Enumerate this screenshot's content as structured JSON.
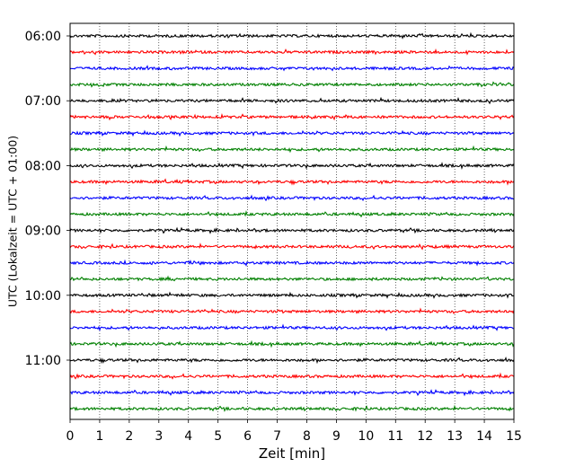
{
  "chart_data": {
    "type": "line",
    "title": "",
    "xlabel": "Zeit  [min]",
    "ylabel": "UTC (Lokalzeit = UTC + 01:00)",
    "xlim": [
      0,
      15
    ],
    "x_ticks": [
      0,
      1,
      2,
      3,
      4,
      5,
      6,
      7,
      8,
      9,
      10,
      11,
      12,
      13,
      14,
      15
    ],
    "y_ticks": [
      "06:00",
      "07:00",
      "08:00",
      "09:00",
      "10:00",
      "11:00"
    ],
    "grid": "vertical dotted lines at each minute",
    "trace_interval_min": 15,
    "colors": [
      "#000000",
      "#ff0000",
      "#0000ff",
      "#008000"
    ],
    "traces": [
      {
        "start": "06:00",
        "color": "#000000"
      },
      {
        "start": "06:15",
        "color": "#ff0000"
      },
      {
        "start": "06:30",
        "color": "#0000ff"
      },
      {
        "start": "06:45",
        "color": "#008000"
      },
      {
        "start": "07:00",
        "color": "#000000"
      },
      {
        "start": "07:15",
        "color": "#ff0000"
      },
      {
        "start": "07:30",
        "color": "#0000ff"
      },
      {
        "start": "07:45",
        "color": "#008000"
      },
      {
        "start": "08:00",
        "color": "#000000"
      },
      {
        "start": "08:15",
        "color": "#ff0000"
      },
      {
        "start": "08:30",
        "color": "#0000ff"
      },
      {
        "start": "08:45",
        "color": "#008000"
      },
      {
        "start": "09:00",
        "color": "#000000"
      },
      {
        "start": "09:15",
        "color": "#ff0000"
      },
      {
        "start": "09:30",
        "color": "#0000ff"
      },
      {
        "start": "09:45",
        "color": "#008000"
      },
      {
        "start": "10:00",
        "color": "#000000"
      },
      {
        "start": "10:15",
        "color": "#ff0000"
      },
      {
        "start": "10:30",
        "color": "#0000ff"
      },
      {
        "start": "10:45",
        "color": "#008000"
      },
      {
        "start": "11:00",
        "color": "#000000"
      },
      {
        "start": "11:15",
        "color": "#ff0000"
      },
      {
        "start": "11:30",
        "color": "#0000ff"
      },
      {
        "start": "11:45",
        "color": "#008000"
      }
    ]
  }
}
